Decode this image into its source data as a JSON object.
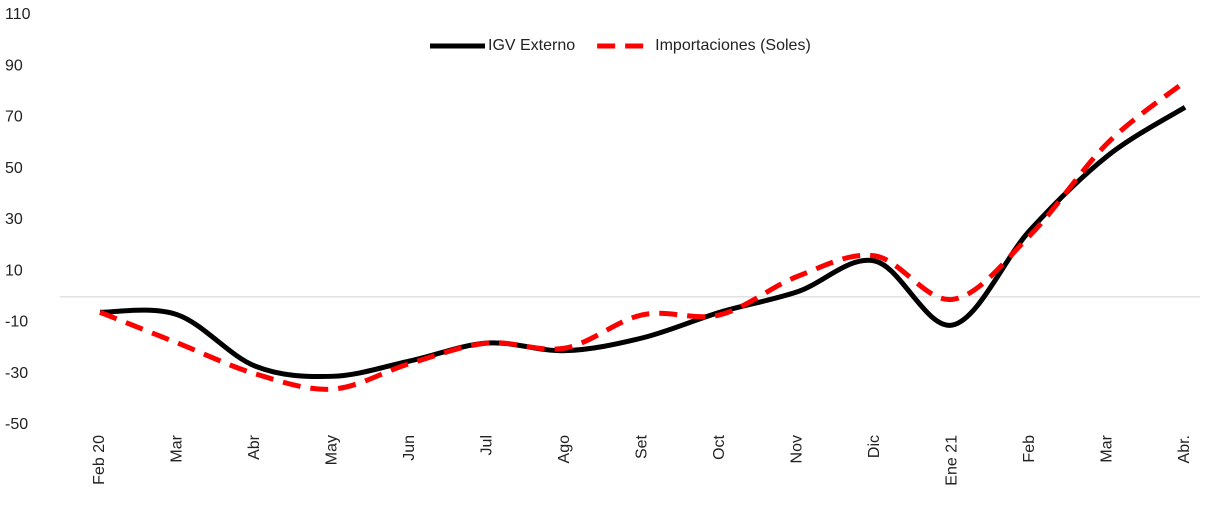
{
  "chart_data": {
    "type": "line",
    "categories": [
      "Feb 20",
      "Mar",
      "Abr",
      "May",
      "Jun",
      "Jul",
      "Ago",
      "Set",
      "Oct",
      "Nov",
      "Dic",
      "Ene 21",
      "Feb",
      "Mar",
      "Abr."
    ],
    "series": [
      {
        "name": "IGV Externo",
        "color": "#000000",
        "dash": false,
        "values": [
          -6,
          -7,
          -27,
          -31,
          -25,
          -18,
          -21,
          -16,
          -6,
          2,
          14,
          -11,
          26,
          55,
          74
        ]
      },
      {
        "name": "Importaciones (Soles)",
        "color": "#ff0000",
        "dash": true,
        "values": [
          -6,
          -18,
          -30,
          -36,
          -26,
          -18,
          -20,
          -7,
          -7,
          8,
          16,
          -1,
          24,
          60,
          84
        ]
      }
    ],
    "ylim": [
      -50,
      110
    ],
    "yticks": [
      -50,
      -30,
      -10,
      10,
      30,
      50,
      70,
      90,
      110
    ],
    "legend": "top"
  }
}
